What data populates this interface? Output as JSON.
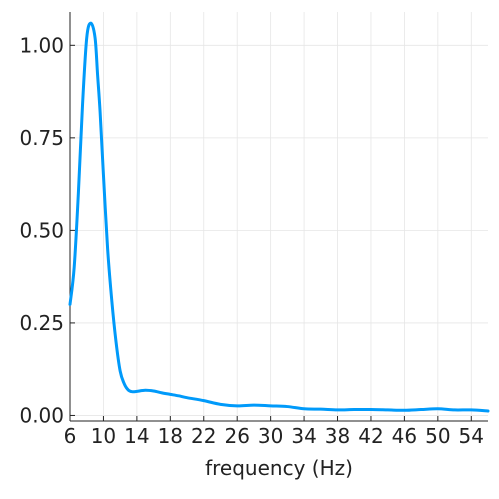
{
  "chart_data": {
    "type": "line",
    "title": "",
    "xlabel": "frequency (Hz)",
    "ylabel": "",
    "xlim": [
      6,
      56
    ],
    "ylim": [
      -0.015,
      1.09
    ],
    "xticks": [
      6,
      10,
      14,
      18,
      22,
      26,
      30,
      34,
      38,
      42,
      46,
      50,
      54
    ],
    "xtick_labels": [
      "6",
      "10",
      "14",
      "18",
      "22",
      "26",
      "30",
      "34",
      "38",
      "42",
      "46",
      "50",
      "54"
    ],
    "yticks": [
      0.0,
      0.25,
      0.5,
      0.75,
      1.0
    ],
    "ytick_labels": [
      "0.00",
      "0.25",
      "0.50",
      "0.75",
      "1.00"
    ],
    "grid": true,
    "legend": "none",
    "line_color": "#009AFA",
    "series": [
      {
        "x": [
          6,
          6.5,
          7,
          7.5,
          8,
          8.5,
          9,
          9.3,
          9.6,
          10,
          10.5,
          11,
          11.5,
          12,
          12.5,
          13,
          13.5,
          14,
          15,
          16,
          17,
          18,
          19,
          20,
          22,
          24,
          26,
          28,
          30,
          32,
          34,
          36,
          38,
          40,
          42,
          44,
          46,
          48,
          50,
          52,
          54,
          56
        ],
        "y": [
          0.3,
          0.4,
          0.6,
          0.84,
          1.02,
          1.06,
          1.02,
          0.92,
          0.82,
          0.65,
          0.45,
          0.31,
          0.2,
          0.12,
          0.085,
          0.068,
          0.064,
          0.065,
          0.068,
          0.066,
          0.061,
          0.057,
          0.053,
          0.048,
          0.04,
          0.03,
          0.026,
          0.028,
          0.026,
          0.024,
          0.018,
          0.017,
          0.015,
          0.016,
          0.016,
          0.015,
          0.014,
          0.016,
          0.018,
          0.015,
          0.015,
          0.012
        ]
      }
    ]
  }
}
